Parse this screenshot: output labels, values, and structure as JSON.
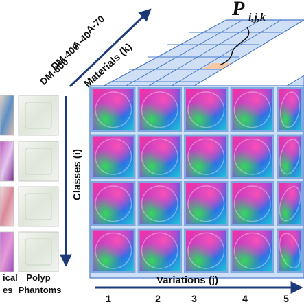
{
  "figure": {
    "materials_axis_label": "Materials (k)",
    "materials": [
      "A-70",
      "A-40",
      "DM-400",
      "DM-600"
    ],
    "classes_axis_label": "Classes (i)",
    "variations_axis_label": "Variations (j)",
    "variation_ticks": [
      "1",
      "2",
      "3",
      "4",
      "5"
    ],
    "pointer_label": {
      "main": "P",
      "subscript": "i,j,k"
    },
    "left_panel": {
      "column_left_caption": [
        "ical",
        "es"
      ],
      "column_right_caption": [
        "Polyp",
        "Phantoms"
      ]
    }
  },
  "colors": {
    "axis_arrow": "#1d3a78",
    "grid_line": "#4a7ac9",
    "cube_face": "#cfe0f6",
    "cell_frame": "#7fa8df",
    "highlight_cell": "#f6c9a6"
  },
  "images": {
    "grid_rows": 4,
    "grid_cols": 5,
    "left_panel_rows": 4
  }
}
